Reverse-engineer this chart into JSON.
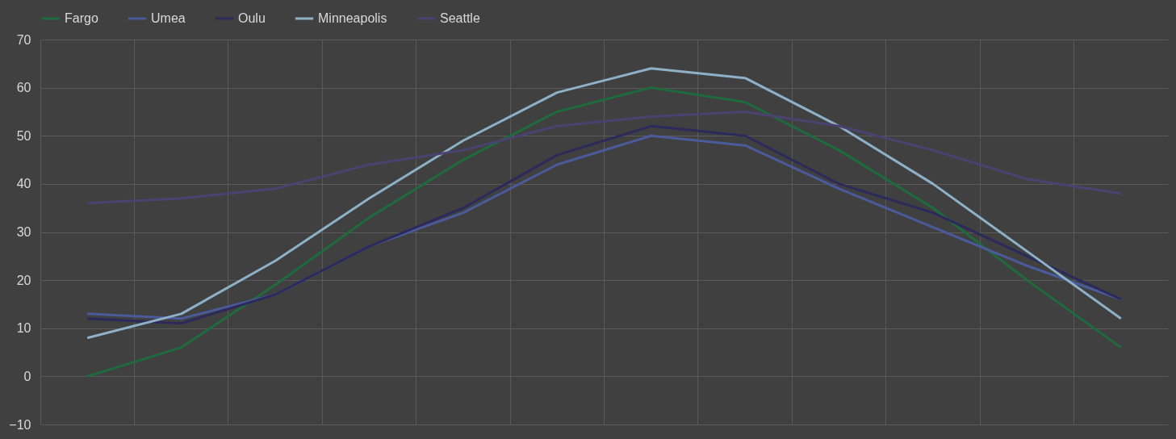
{
  "chart_data": {
    "type": "line",
    "categories": [
      null,
      null,
      null,
      null,
      null,
      null,
      null,
      null,
      null,
      null,
      null,
      null
    ],
    "series": [
      {
        "name": "Fargo",
        "color": "#1e6b3e",
        "values": [
          0,
          6,
          19,
          33,
          45,
          55,
          60,
          57,
          47,
          35,
          20,
          6
        ]
      },
      {
        "name": "Umea",
        "color": "#4a5a9a",
        "values": [
          13,
          12,
          17,
          27,
          34,
          44,
          50,
          48,
          39,
          31,
          23,
          16
        ]
      },
      {
        "name": "Oulu",
        "color": "#2b2a5a",
        "values": [
          12,
          11,
          17,
          27,
          35,
          46,
          52,
          50,
          40,
          34,
          25,
          16
        ]
      },
      {
        "name": "Minneapolis",
        "color": "#8eb1c8",
        "values": [
          8,
          13,
          24,
          37,
          49,
          59,
          64,
          62,
          52,
          40,
          26,
          12
        ]
      },
      {
        "name": "Seattle",
        "color": "#4a4270",
        "values": [
          36,
          37,
          39,
          44,
          47,
          52,
          54,
          55,
          52,
          47,
          41,
          38
        ]
      }
    ],
    "ylim": [
      -10,
      70
    ],
    "yticks": [
      -10,
      0,
      10,
      20,
      30,
      40,
      50,
      60,
      70
    ],
    "grid": true,
    "legend": "top",
    "tick_labels": "y",
    "marker": "none",
    "line_style": "solid"
  }
}
